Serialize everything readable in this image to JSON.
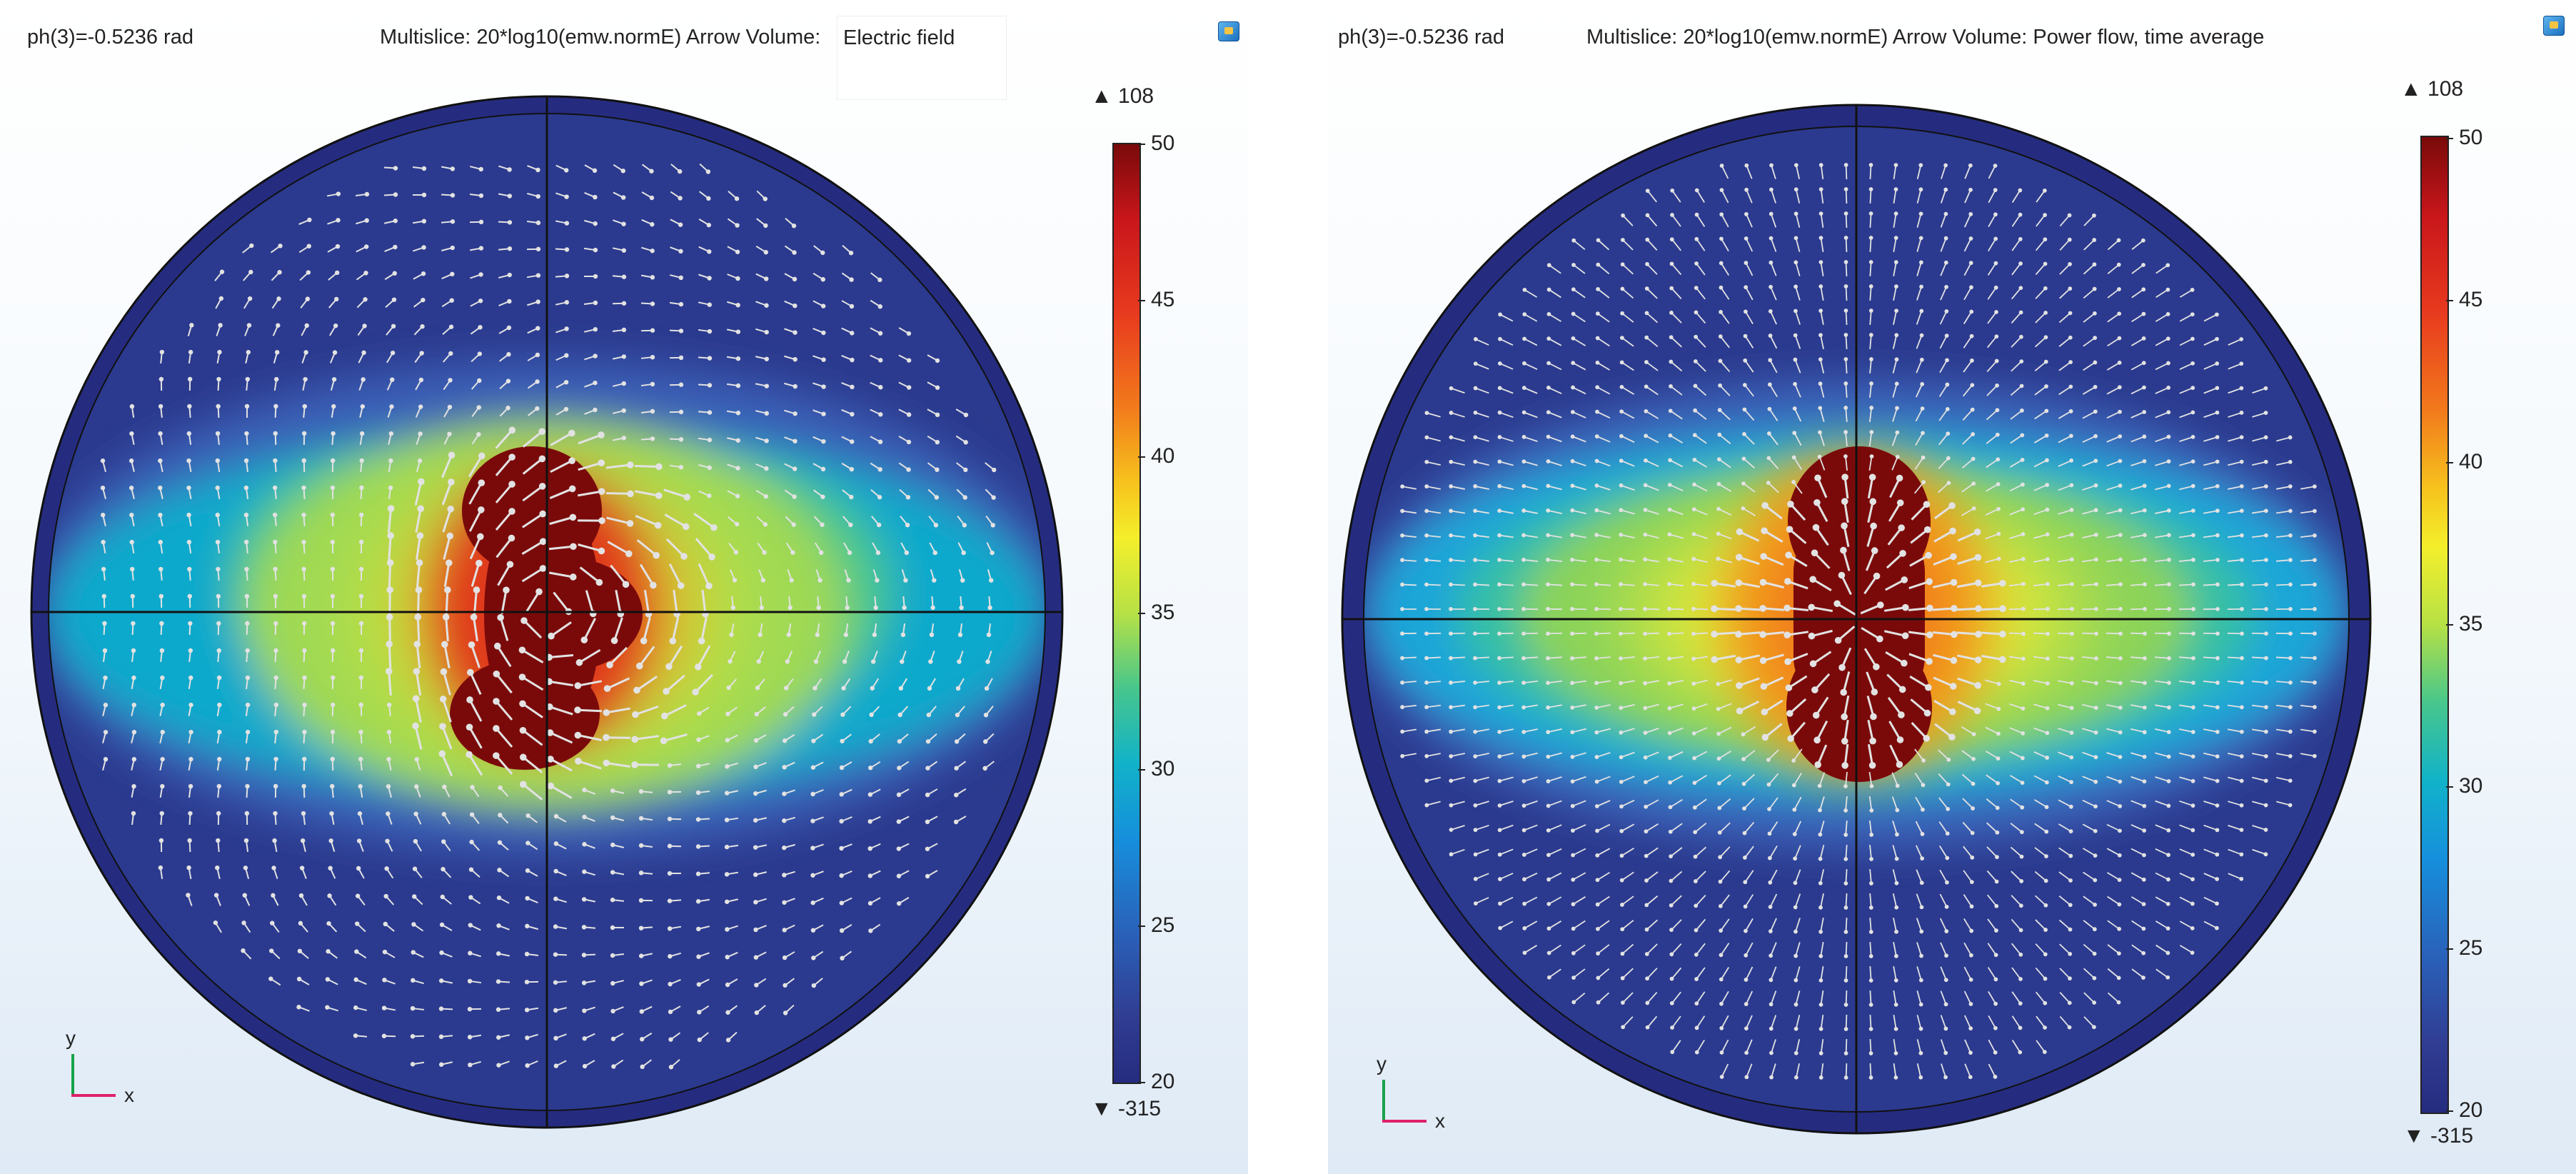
{
  "panels": [
    {
      "ph": "ph(3)=-0.5236 rad",
      "title": "Multislice: 20*log10(emw.normE)  Arrow Volume:",
      "arrow_label": "Electric field",
      "colorbar": {
        "max": "▲ 108",
        "min": "▼ -315",
        "ticks": [
          "50",
          "45",
          "40",
          "35",
          "30",
          "25",
          "20"
        ]
      },
      "axes": {
        "x": "x",
        "y": "y"
      }
    },
    {
      "ph": "ph(3)=-0.5236 rad",
      "title": "Multislice: 20*log10(emw.normE)  Arrow Volume: Power flow, time average",
      "colorbar": {
        "max": "▲ 108",
        "min": "▼ -315",
        "ticks": [
          "50",
          "45",
          "40",
          "35",
          "30",
          "25",
          "20"
        ]
      },
      "axes": {
        "x": "x",
        "y": "y"
      }
    }
  ],
  "colors": {
    "outer_ring": "#252c80",
    "low": "#2b3a8e",
    "high": "#7a0a0a",
    "arrow": "#e2e2e2"
  },
  "icons": [
    "image-export-icon",
    "axis-triad-icon"
  ]
}
